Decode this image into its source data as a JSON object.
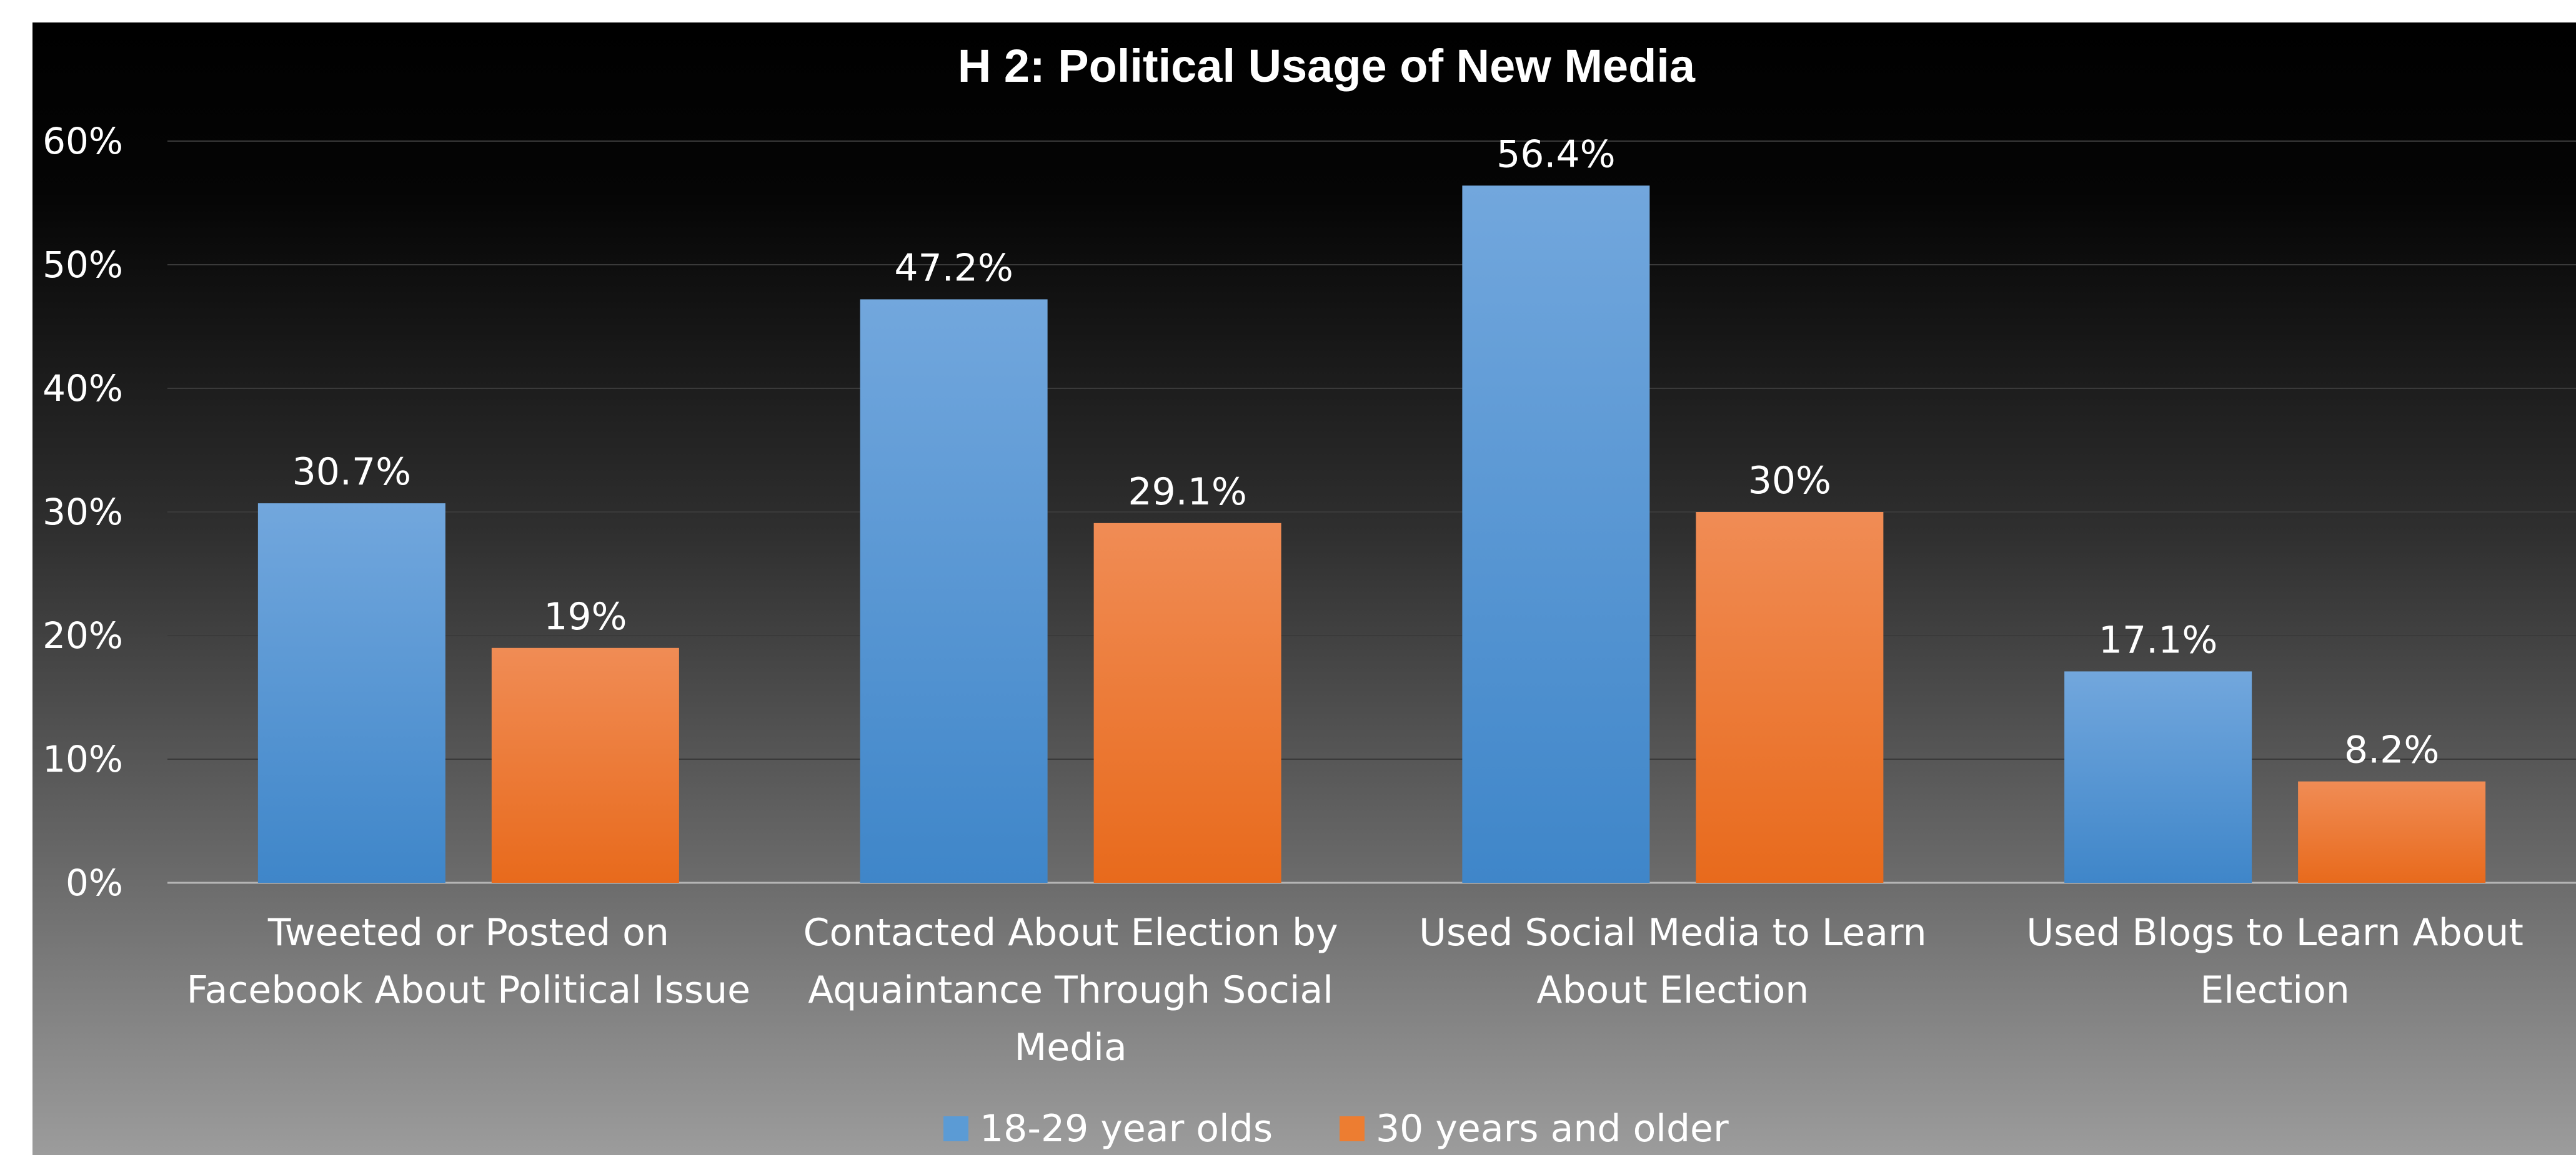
{
  "chart_data": {
    "type": "bar",
    "title": "H 2: Political Usage of New Media",
    "categories": [
      [
        "Tweeted or Posted on",
        "Facebook About Political Issue"
      ],
      [
        "Contacted About Election by",
        "Aquaintance Through Social",
        "Media"
      ],
      [
        "Used Social Media to Learn",
        "About Election"
      ],
      [
        "Used Blogs to Learn About",
        "Election"
      ]
    ],
    "series": [
      {
        "name": "18-29 year olds",
        "values": [
          30.7,
          47.2,
          56.4,
          17.1
        ],
        "labels": [
          "30.7%",
          "47.2%",
          "56.4%",
          "17.1%"
        ],
        "color": "#5b9bd5"
      },
      {
        "name": "30 years and older",
        "values": [
          19,
          29.1,
          30,
          8.2
        ],
        "labels": [
          "19%",
          "29.1%",
          "30%",
          "8.2%"
        ],
        "color": "#ed7d31"
      }
    ],
    "yticks": [
      "0%",
      "10%",
      "20%",
      "30%",
      "40%",
      "50%",
      "60%"
    ],
    "ylim": [
      0,
      60
    ],
    "grid": true,
    "legend": "bottom"
  }
}
